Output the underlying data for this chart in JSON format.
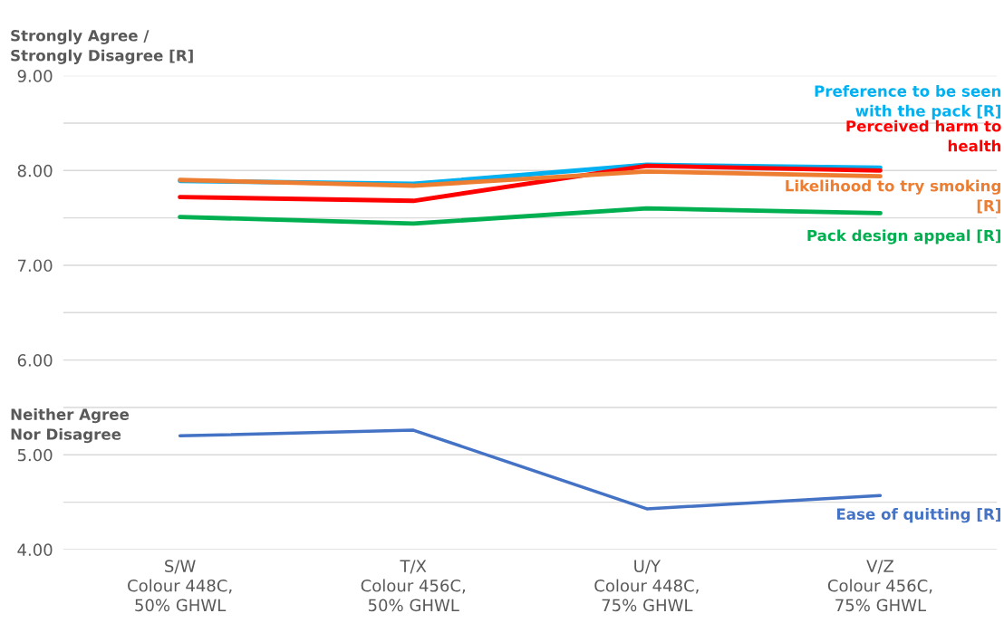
{
  "chart_data": {
    "type": "line",
    "categories": [
      "S/W\nColour 448C,\n50% GHWL",
      "T/X\nColour 456C,\n50% GHWL",
      "U/Y\nColour 448C,\n75% GHWL",
      "V/Z\nColour 456C,\n75% GHWL"
    ],
    "series": [
      {
        "name": "Preference to be seen\nwith the pack [R]",
        "color": "#00b0f0",
        "values": [
          7.89,
          7.86,
          8.06,
          8.03
        ]
      },
      {
        "name": "Perceived harm to\nhealth",
        "color": "#ff0000",
        "values": [
          7.72,
          7.68,
          8.05,
          8.0
        ]
      },
      {
        "name": "Likelihood to try smoking\n[R]",
        "color": "#ed7d31",
        "values": [
          7.9,
          7.84,
          7.99,
          7.94
        ]
      },
      {
        "name": "Pack design appeal [R]",
        "color": "#00b050",
        "values": [
          7.51,
          7.44,
          7.6,
          7.55
        ]
      },
      {
        "name": "Ease of quitting [R]",
        "color": "#4472c4",
        "values": [
          5.2,
          5.26,
          4.43,
          4.57
        ]
      }
    ],
    "ylim": [
      4,
      9
    ],
    "yticks": [
      {
        "value": 4,
        "label": "4.00"
      },
      {
        "value": 4.5,
        "label": null
      },
      {
        "value": 5,
        "label": "5.00"
      },
      {
        "value": 5.5,
        "label": null
      },
      {
        "value": 6,
        "label": "6.00"
      },
      {
        "value": 6.5,
        "label": null
      },
      {
        "value": 7,
        "label": "7.00"
      },
      {
        "value": 7.5,
        "label": null
      },
      {
        "value": 8,
        "label": "8.00"
      },
      {
        "value": 8.5,
        "label": null
      },
      {
        "value": 9,
        "label": "9.00"
      }
    ],
    "grid": "y",
    "legend": false,
    "marker": "none",
    "line_style": "solid",
    "annotations": [
      "Strongly Agree /\nStrongly Disagree [R]",
      "Neither Agree\nNor Disagree"
    ]
  }
}
